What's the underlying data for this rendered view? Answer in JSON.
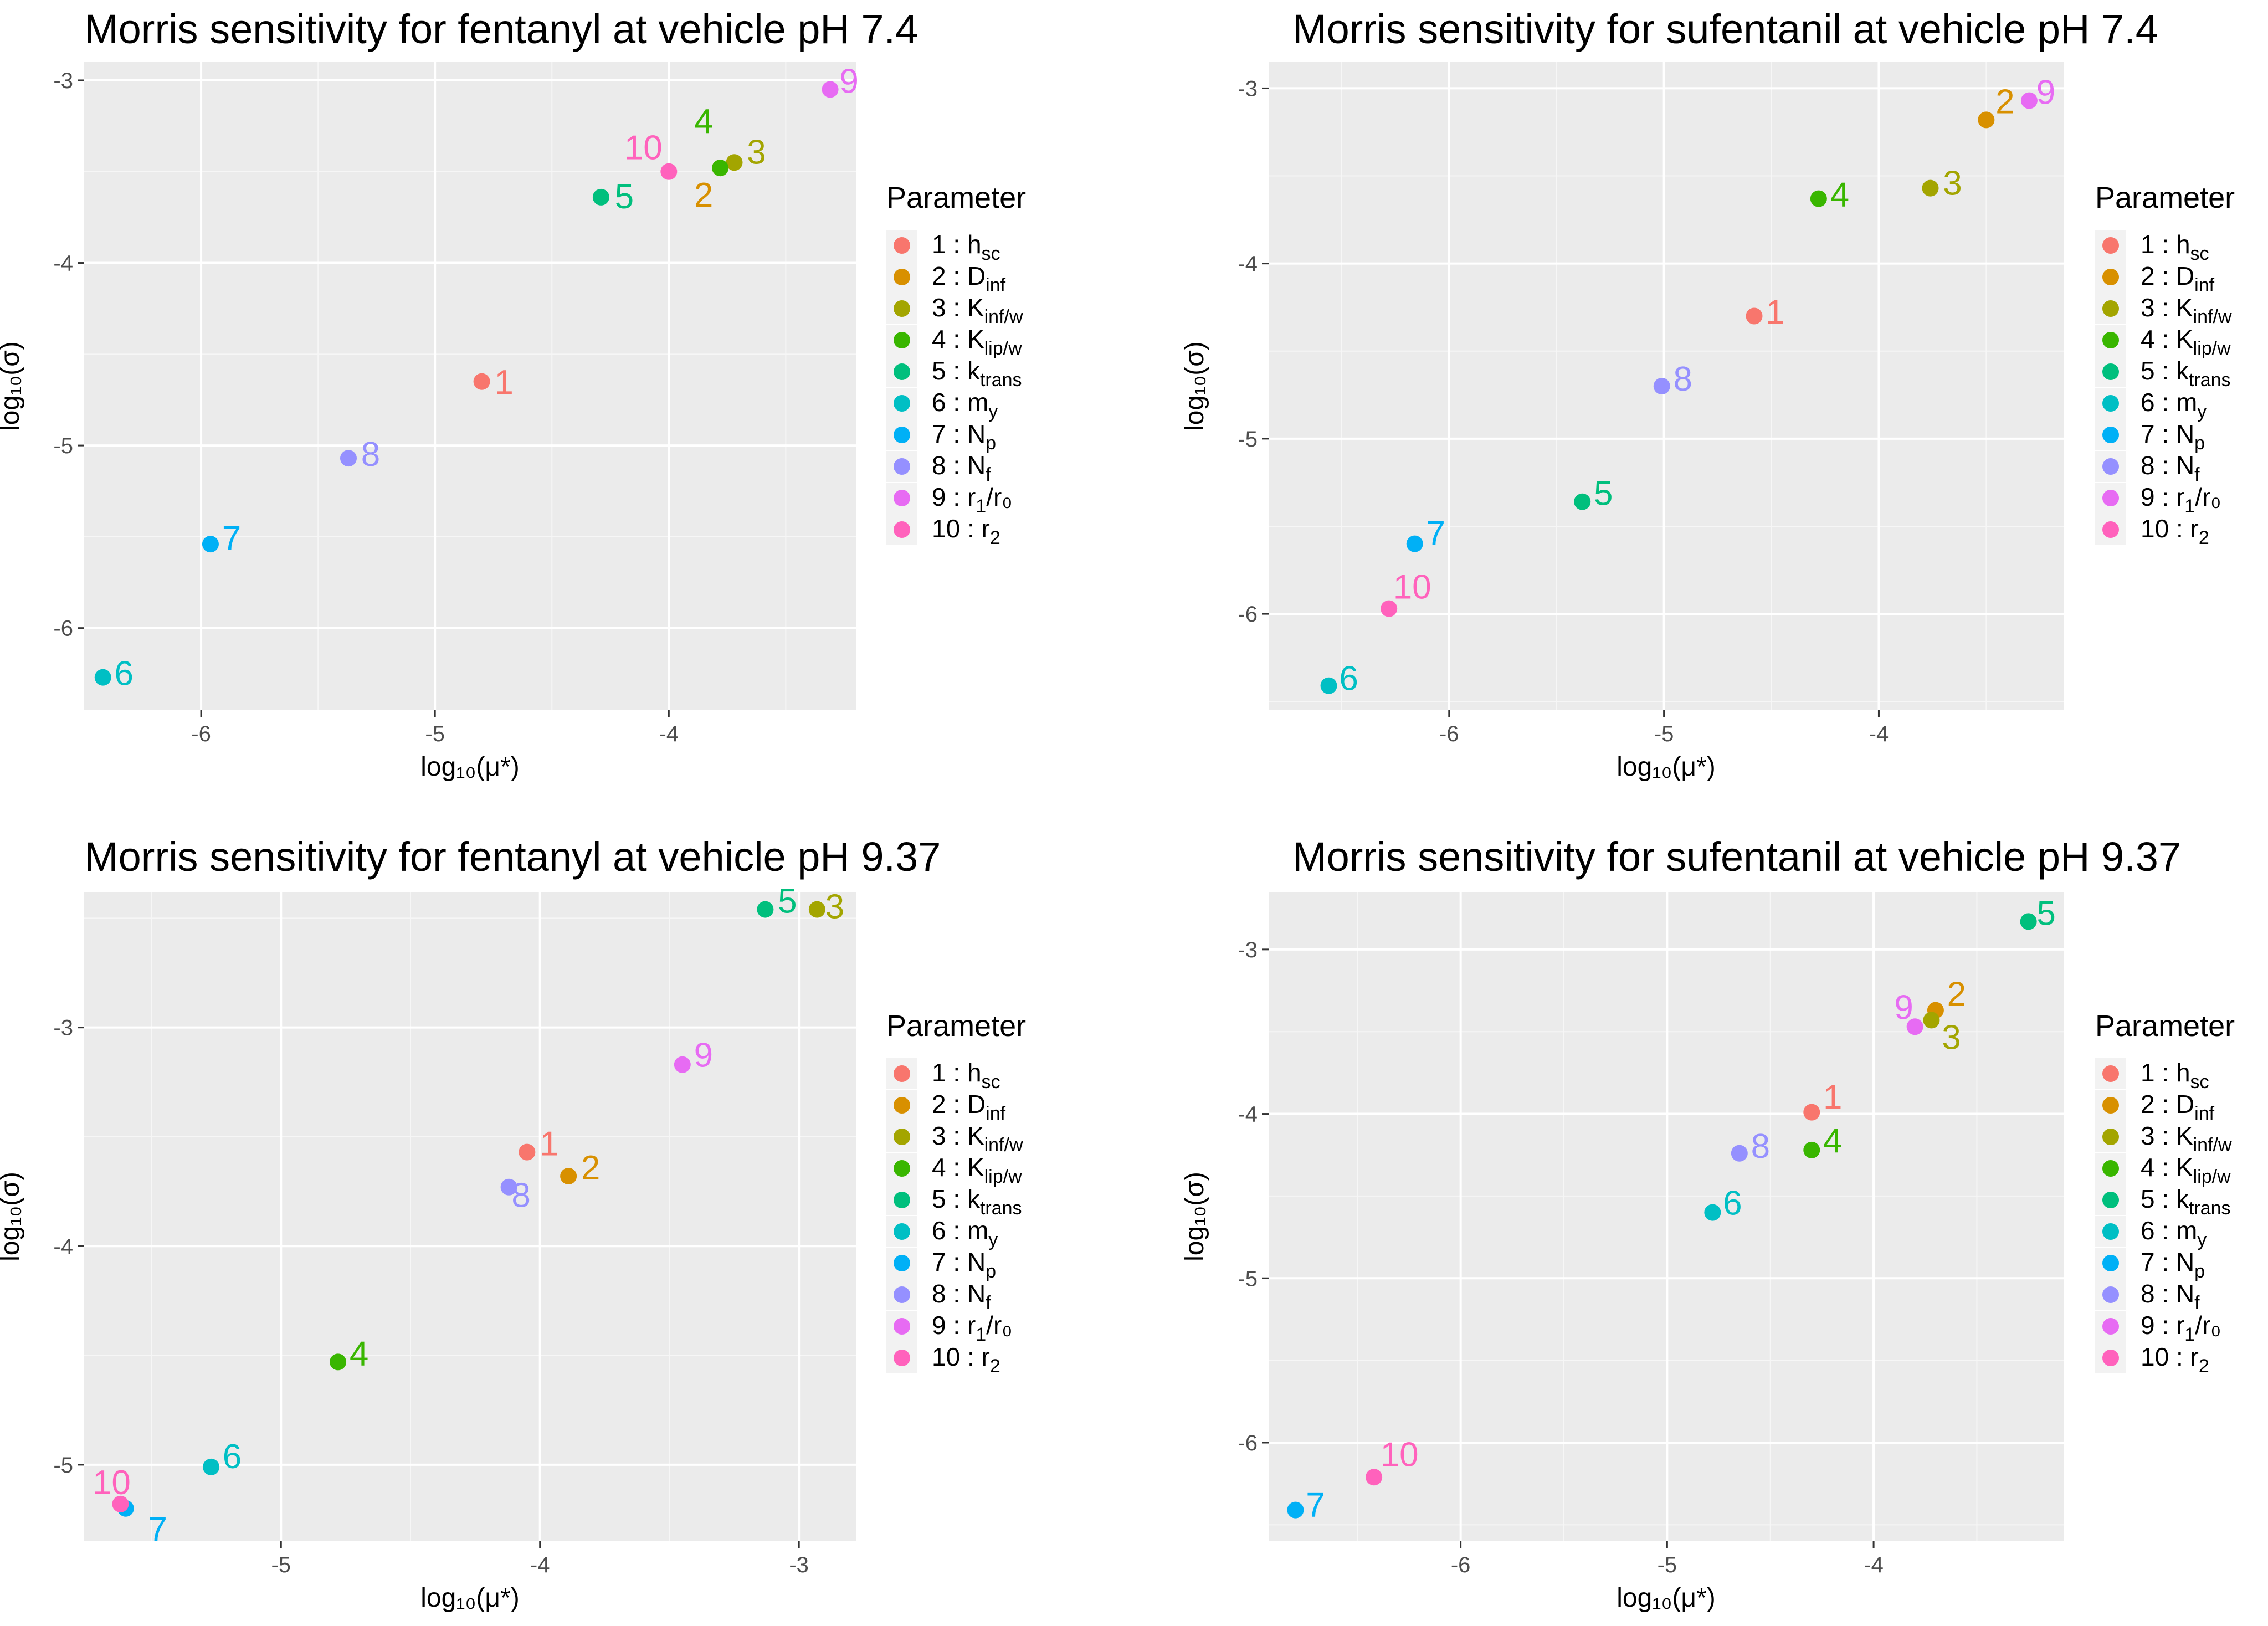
{
  "legend_title": "Parameter",
  "parameters": [
    {
      "id": 1,
      "base": "h",
      "sub": "sc",
      "sup": "",
      "color": "#F8766D"
    },
    {
      "id": 2,
      "base": "D",
      "sub": "inf",
      "sup": "",
      "color": "#D89000"
    },
    {
      "id": 3,
      "base": "K",
      "sub": "inf/w",
      "sup": "",
      "color": "#A3A500"
    },
    {
      "id": 4,
      "base": "K",
      "sub": "lip/w",
      "sup": "",
      "color": "#39B600"
    },
    {
      "id": 5,
      "base": "k",
      "sub": "trans",
      "sup": "",
      "color": "#00BF7D"
    },
    {
      "id": 6,
      "base": "m",
      "sub": "y",
      "sup": "",
      "color": "#00BFC4"
    },
    {
      "id": 7,
      "base": "N",
      "sub": "p",
      "sup": "",
      "color": "#00B0F6"
    },
    {
      "id": 8,
      "base": "N",
      "sub": "f",
      "sup": "",
      "color": "#9590FF"
    },
    {
      "id": 9,
      "base": "r",
      "sub": "1",
      "sup": "/r₀",
      "color": "#E76BF3"
    },
    {
      "id": 10,
      "base": "r",
      "sub": "2",
      "sup": "",
      "color": "#FF62BC"
    }
  ],
  "chart_data": [
    {
      "type": "scatter",
      "title": "Morris sensitivity for fentanyl at vehicle pH 7.4",
      "xlabel": "log₁₀(μ*)",
      "ylabel": "log₁₀(σ)",
      "xlim": [
        -6.5,
        -3.2
      ],
      "ylim": [
        -6.45,
        -2.9
      ],
      "xticks": [
        -6,
        -5,
        -4
      ],
      "yticks": [
        -6,
        -5,
        -4,
        -3
      ],
      "points": [
        {
          "id": 1,
          "x": -4.8,
          "y": -4.65
        },
        {
          "id": 2,
          "x": -3.78,
          "y": -3.48
        },
        {
          "id": 3,
          "x": -3.72,
          "y": -3.45
        },
        {
          "id": 4,
          "x": -3.78,
          "y": -3.48
        },
        {
          "id": 5,
          "x": -4.29,
          "y": -3.64
        },
        {
          "id": 6,
          "x": -6.42,
          "y": -6.27
        },
        {
          "id": 7,
          "x": -5.96,
          "y": -5.54
        },
        {
          "id": 8,
          "x": -5.37,
          "y": -5.07
        },
        {
          "id": 9,
          "x": -3.31,
          "y": -3.05
        },
        {
          "id": 10,
          "x": -4.0,
          "y": -3.5
        }
      ]
    },
    {
      "type": "scatter",
      "title": "Morris sensitivity for sufentanil at vehicle pH 7.4",
      "xlabel": "log₁₀(μ*)",
      "ylabel": "log₁₀(σ)",
      "xlim": [
        -6.84,
        -3.14
      ],
      "ylim": [
        -6.55,
        -2.85
      ],
      "xticks": [
        -6,
        -5,
        -4
      ],
      "yticks": [
        -6,
        -5,
        -4,
        -3
      ],
      "points": [
        {
          "id": 1,
          "x": -4.58,
          "y": -4.3
        },
        {
          "id": 2,
          "x": -3.5,
          "y": -3.18
        },
        {
          "id": 3,
          "x": -3.76,
          "y": -3.57
        },
        {
          "id": 4,
          "x": -4.28,
          "y": -3.63
        },
        {
          "id": 5,
          "x": -5.38,
          "y": -5.36
        },
        {
          "id": 6,
          "x": -6.56,
          "y": -6.41
        },
        {
          "id": 7,
          "x": -6.16,
          "y": -5.6
        },
        {
          "id": 8,
          "x": -5.01,
          "y": -4.7
        },
        {
          "id": 9,
          "x": -3.3,
          "y": -3.07
        },
        {
          "id": 10,
          "x": -6.28,
          "y": -5.97
        }
      ]
    },
    {
      "type": "scatter",
      "title": "Morris sensitivity for fentanyl at vehicle pH 9.37",
      "xlabel": "log₁₀(μ*)",
      "ylabel": "log₁₀(σ)",
      "xlim": [
        -5.76,
        -2.78
      ],
      "ylim": [
        -5.35,
        -2.38
      ],
      "xticks": [
        -5,
        -4,
        -3
      ],
      "yticks": [
        -5,
        -4,
        -3
      ],
      "points": [
        {
          "id": 1,
          "x": -4.05,
          "y": -3.57
        },
        {
          "id": 2,
          "x": -3.89,
          "y": -3.68
        },
        {
          "id": 3,
          "x": -2.93,
          "y": -2.46
        },
        {
          "id": 4,
          "x": -4.78,
          "y": -4.53
        },
        {
          "id": 5,
          "x": -3.13,
          "y": -2.46
        },
        {
          "id": 6,
          "x": -5.27,
          "y": -5.01
        },
        {
          "id": 7,
          "x": -5.6,
          "y": -5.2
        },
        {
          "id": 8,
          "x": -4.12,
          "y": -3.73
        },
        {
          "id": 9,
          "x": -3.45,
          "y": -3.17
        },
        {
          "id": 10,
          "x": -5.62,
          "y": -5.18
        }
      ]
    },
    {
      "type": "scatter",
      "title": "Morris sensitivity for sufentanil at vehicle pH 9.37",
      "xlabel": "log₁₀(μ*)",
      "ylabel": "log₁₀(σ)",
      "xlim": [
        -6.93,
        -3.08
      ],
      "ylim": [
        -6.6,
        -2.65
      ],
      "xticks": [
        -6,
        -5,
        -4
      ],
      "yticks": [
        -6,
        -5,
        -4,
        -3
      ],
      "points": [
        {
          "id": 1,
          "x": -4.3,
          "y": -3.99
        },
        {
          "id": 2,
          "x": -3.7,
          "y": -3.37
        },
        {
          "id": 3,
          "x": -3.72,
          "y": -3.43
        },
        {
          "id": 4,
          "x": -4.3,
          "y": -4.22
        },
        {
          "id": 5,
          "x": -3.25,
          "y": -2.83
        },
        {
          "id": 6,
          "x": -4.78,
          "y": -4.6
        },
        {
          "id": 7,
          "x": -6.8,
          "y": -6.41
        },
        {
          "id": 8,
          "x": -4.65,
          "y": -4.24
        },
        {
          "id": 9,
          "x": -3.8,
          "y": -3.47
        },
        {
          "id": 10,
          "x": -6.42,
          "y": -6.21
        }
      ]
    }
  ]
}
